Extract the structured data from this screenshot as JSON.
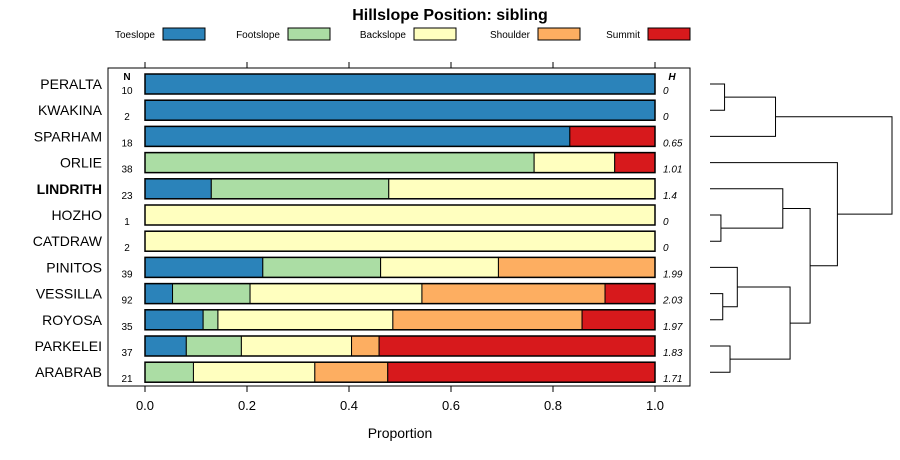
{
  "chart_data": {
    "type": "bar",
    "orientation": "horizontal-stacked",
    "title": "Hillslope Position: sibling",
    "xlabel": "Proportion",
    "xlim": [
      0,
      1
    ],
    "xticks": [
      "0.0",
      "0.2",
      "0.4",
      "0.6",
      "0.8",
      "1.0"
    ],
    "xtick_values": [
      0,
      0.2,
      0.4,
      0.6,
      0.8,
      1.0
    ],
    "n_header": "N",
    "h_header": "H",
    "legend": [
      {
        "name": "Toeslope",
        "color": "#2b83ba"
      },
      {
        "name": "Footslope",
        "color": "#abdda4"
      },
      {
        "name": "Backslope",
        "color": "#ffffbf"
      },
      {
        "name": "Shoulder",
        "color": "#fdae61"
      },
      {
        "name": "Summit",
        "color": "#d7191c"
      }
    ],
    "rows": [
      {
        "name": "PERALTA",
        "n": "10",
        "h": "0",
        "bold": false,
        "values": [
          1.0,
          0,
          0,
          0,
          0
        ]
      },
      {
        "name": "KWAKINA",
        "n": "2",
        "h": "0",
        "bold": false,
        "values": [
          1.0,
          0,
          0,
          0,
          0
        ]
      },
      {
        "name": "SPARHAM",
        "n": "18",
        "h": "0.65",
        "bold": false,
        "values": [
          0.833,
          0,
          0,
          0,
          0.167
        ]
      },
      {
        "name": "ORLIE",
        "n": "38",
        "h": "1.01",
        "bold": false,
        "values": [
          0,
          0.763,
          0.158,
          0,
          0.079
        ]
      },
      {
        "name": "LINDRITH",
        "n": "23",
        "h": "1.4",
        "bold": true,
        "values": [
          0.13,
          0.348,
          0.522,
          0,
          0
        ]
      },
      {
        "name": "HOZHO",
        "n": "1",
        "h": "0",
        "bold": false,
        "values": [
          0,
          0,
          1.0,
          0,
          0
        ]
      },
      {
        "name": "CATDRAW",
        "n": "2",
        "h": "0",
        "bold": false,
        "values": [
          0,
          0,
          1.0,
          0,
          0
        ]
      },
      {
        "name": "PINITOS",
        "n": "39",
        "h": "1.99",
        "bold": false,
        "values": [
          0.231,
          0.231,
          0.231,
          0.307,
          0
        ]
      },
      {
        "name": "VESSILLA",
        "n": "92",
        "h": "2.03",
        "bold": false,
        "values": [
          0.054,
          0.152,
          0.337,
          0.359,
          0.098
        ]
      },
      {
        "name": "ROYOSA",
        "n": "35",
        "h": "1.97",
        "bold": false,
        "values": [
          0.114,
          0.029,
          0.343,
          0.371,
          0.143
        ]
      },
      {
        "name": "PARKELEI",
        "n": "37",
        "h": "1.83",
        "bold": false,
        "values": [
          0.081,
          0.108,
          0.216,
          0.054,
          0.541
        ]
      },
      {
        "name": "ARABRAB",
        "n": "21",
        "h": "1.71",
        "bold": false,
        "values": [
          0,
          0.095,
          0.238,
          0.143,
          0.524
        ]
      }
    ],
    "dendrogram": {
      "merges": [
        [
          0,
          1,
          0.08
        ],
        [
          "m0",
          2,
          0.36
        ],
        [
          5,
          6,
          0.06
        ],
        [
          8,
          9,
          0.07
        ],
        [
          7,
          "m3",
          0.15
        ],
        [
          10,
          11,
          0.11
        ],
        [
          "m4",
          "m5",
          0.44
        ],
        [
          4,
          "m2",
          0.4
        ],
        [
          "m7",
          "m6",
          0.55
        ],
        [
          3,
          "m8",
          0.7
        ],
        [
          "m1",
          "m9",
          1.0
        ]
      ]
    }
  }
}
